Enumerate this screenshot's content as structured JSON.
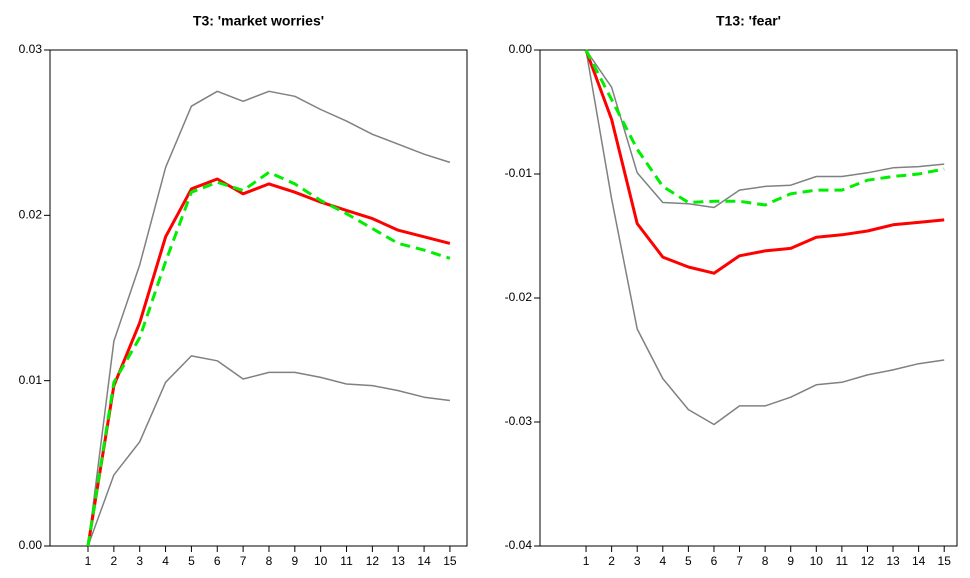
{
  "chart_data": [
    {
      "type": "line",
      "title": "T3: 'market worries'",
      "x": [
        1,
        2,
        3,
        4,
        5,
        6,
        7,
        8,
        9,
        10,
        11,
        12,
        13,
        14,
        15
      ],
      "xlim": [
        -0.47,
        15.66
      ],
      "xticks": [
        1,
        2,
        3,
        4,
        5,
        6,
        7,
        8,
        9,
        10,
        11,
        12,
        13,
        14,
        15
      ],
      "ylim": [
        0,
        0.03
      ],
      "yticks": [
        {
          "value": 0,
          "label": "0.00"
        },
        0.01,
        0.02,
        0.03
      ],
      "series": [
        {
          "color": "#808080",
          "width": 1.5,
          "dashed": false,
          "values": [
            0,
            0.0124,
            0.017,
            0.0229,
            0.0266,
            0.0275,
            0.0269,
            0.0275,
            0.0272,
            0.0264,
            0.0257,
            0.0249,
            0.0243,
            0.0237,
            0.0232
          ]
        },
        {
          "color": "#808080",
          "width": 1.5,
          "dashed": false,
          "values": [
            0,
            0.0043,
            0.0063,
            0.0099,
            0.0115,
            0.0112,
            0.0101,
            0.0105,
            0.0105,
            0.0102,
            0.0098,
            0.0097,
            0.0094,
            0.009,
            0.0088
          ]
        },
        {
          "color": "#ff0000",
          "width": 3,
          "dashed": false,
          "values": [
            0,
            0.0097,
            0.0135,
            0.0187,
            0.0216,
            0.0222,
            0.0213,
            0.0219,
            0.0214,
            0.0208,
            0.0203,
            0.0198,
            0.0191,
            0.0187,
            0.0183
          ]
        },
        {
          "color": "#00ee00",
          "width": 3,
          "dashed": true,
          "values": [
            0,
            0.0099,
            0.0126,
            0.0172,
            0.0214,
            0.022,
            0.0215,
            0.0226,
            0.0219,
            0.0209,
            0.0201,
            0.0192,
            0.0183,
            0.0179,
            0.0174
          ]
        }
      ]
    },
    {
      "type": "line",
      "title": "T13: 'fear'",
      "x": [
        1,
        2,
        3,
        4,
        5,
        6,
        7,
        8,
        9,
        10,
        11,
        12,
        13,
        14,
        15
      ],
      "xlim": [
        -0.8,
        15.5
      ],
      "xticks": [
        1,
        2,
        3,
        4,
        5,
        6,
        7,
        8,
        9,
        10,
        11,
        12,
        13,
        14,
        15
      ],
      "ylim": [
        -0.04,
        0
      ],
      "yticks": [
        -0.04,
        -0.03,
        -0.02,
        -0.01,
        {
          "value": 0,
          "label": "0.00"
        }
      ],
      "series": [
        {
          "color": "#808080",
          "width": 1.5,
          "dashed": false,
          "values": [
            0,
            -0.003,
            -0.0099,
            -0.0123,
            -0.0124,
            -0.0127,
            -0.0113,
            -0.011,
            -0.0109,
            -0.0102,
            -0.0102,
            -0.0099,
            -0.0095,
            -0.0094,
            -0.0092
          ]
        },
        {
          "color": "#808080",
          "width": 1.5,
          "dashed": false,
          "values": [
            0,
            -0.012,
            -0.0225,
            -0.0265,
            -0.029,
            -0.0302,
            -0.0287,
            -0.0287,
            -0.028,
            -0.027,
            -0.0268,
            -0.0262,
            -0.0258,
            -0.0253,
            -0.025
          ]
        },
        {
          "color": "#ff0000",
          "width": 3,
          "dashed": false,
          "values": [
            0,
            -0.0056,
            -0.014,
            -0.0167,
            -0.0175,
            -0.018,
            -0.0166,
            -0.0162,
            -0.016,
            -0.0151,
            -0.0149,
            -0.0146,
            -0.0141,
            -0.0139,
            -0.0137
          ]
        },
        {
          "color": "#00ee00",
          "width": 3,
          "dashed": true,
          "values": [
            0,
            -0.004,
            -0.008,
            -0.011,
            -0.0123,
            -0.0122,
            -0.0122,
            -0.0125,
            -0.0116,
            -0.0113,
            -0.0113,
            -0.0105,
            -0.0102,
            -0.01,
            -0.0096
          ]
        }
      ]
    }
  ]
}
